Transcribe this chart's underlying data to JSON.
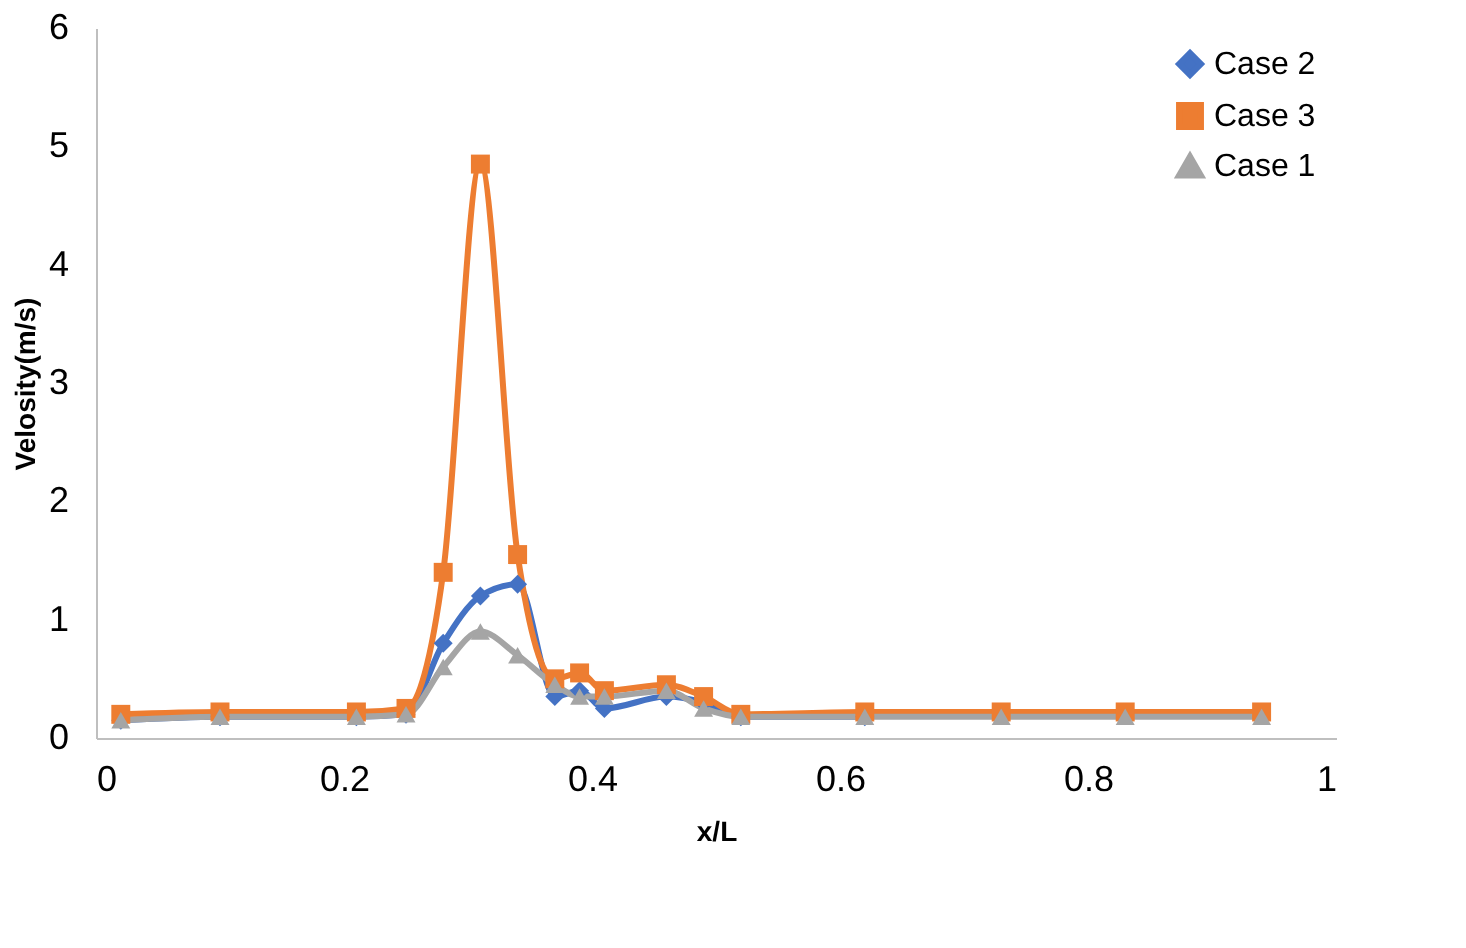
{
  "chart_data": {
    "type": "line",
    "xlabel": "x/L",
    "ylabel": "Velosity(m/s)",
    "x": [
      0.02,
      0.1,
      0.21,
      0.25,
      0.28,
      0.31,
      0.34,
      0.37,
      0.39,
      0.41,
      0.46,
      0.49,
      0.52,
      0.62,
      0.73,
      0.83,
      0.94
    ],
    "series": [
      {
        "name": "Case 2",
        "color": "#4472c4",
        "marker": "diamond",
        "values": [
          0.15,
          0.18,
          0.18,
          0.2,
          0.8,
          1.2,
          1.3,
          0.35,
          0.4,
          0.25,
          0.35,
          0.3,
          0.18,
          0.18,
          null,
          null,
          null
        ]
      },
      {
        "name": "Case 3",
        "color": "#ed7d31",
        "marker": "square",
        "values": [
          0.2,
          0.22,
          0.22,
          0.25,
          1.4,
          4.85,
          1.55,
          0.5,
          0.55,
          0.4,
          0.45,
          0.35,
          0.2,
          0.22,
          0.22,
          0.22,
          0.22
        ]
      },
      {
        "name": "Case 1",
        "color": "#a5a5a5",
        "marker": "triangle",
        "values": [
          0.15,
          0.18,
          0.18,
          0.2,
          0.6,
          0.9,
          0.7,
          0.45,
          0.35,
          0.35,
          0.4,
          0.25,
          0.18,
          0.18,
          0.18,
          0.18,
          0.18
        ]
      }
    ],
    "xlim": [
      0,
      1
    ],
    "xticks": [
      0,
      0.2,
      0.4,
      0.6,
      0.8,
      1
    ],
    "ylim": [
      0,
      6
    ],
    "yticks": [
      0,
      1,
      2,
      3,
      4,
      5,
      6
    ],
    "grid": false,
    "legend": "top right",
    "line_style": "solid"
  }
}
